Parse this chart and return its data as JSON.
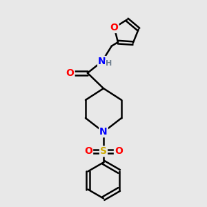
{
  "bg_color": "#e8e8e8",
  "bond_color": "#000000",
  "bond_width": 1.8,
  "atom_colors": {
    "O": "#ff0000",
    "N": "#0000ff",
    "S": "#ccaa00",
    "C": "#000000",
    "H": "#708090"
  },
  "font_size_atom": 10,
  "font_size_h": 8,
  "xlim": [
    -2.2,
    2.2
  ],
  "ylim": [
    -3.8,
    3.2
  ]
}
